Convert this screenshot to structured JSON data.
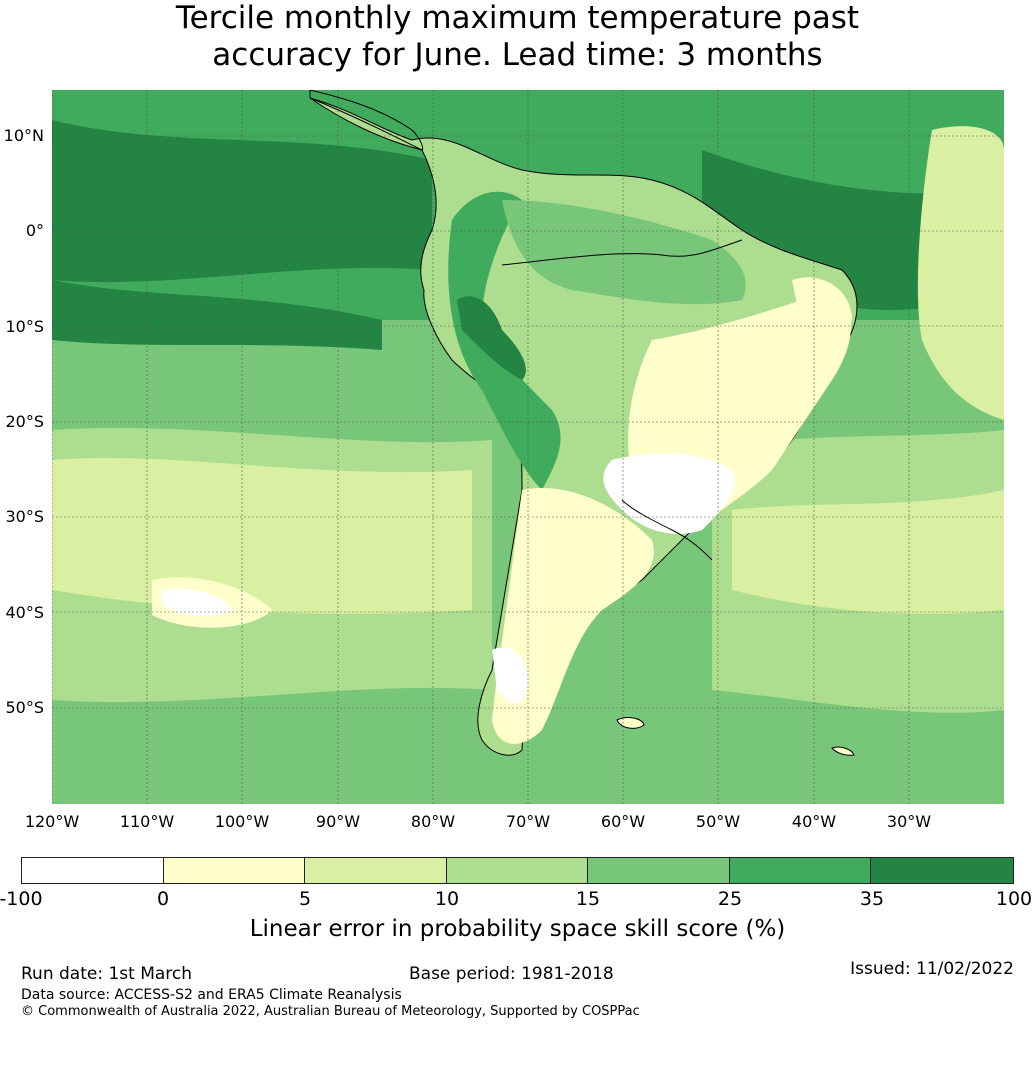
{
  "title_line1": "Tercile monthly maximum temperature past",
  "title_line2": "accuracy for June. Lead time: 3 months",
  "lat_labels": [
    "10°N",
    "0°",
    "10°S",
    "20°S",
    "30°S",
    "40°S",
    "50°S"
  ],
  "lon_labels": [
    "120°W",
    "110°W",
    "100°W",
    "90°W",
    "80°W",
    "70°W",
    "60°W",
    "50°W",
    "40°W",
    "30°W"
  ],
  "colorbar": {
    "colors": [
      "#ffffff",
      "#ffffcc",
      "#d9f0a3",
      "#addd8e",
      "#78c679",
      "#41ab5d",
      "#238443"
    ],
    "ticks": [
      "-100",
      "0",
      "5",
      "10",
      "15",
      "25",
      "35",
      "100"
    ],
    "label": "Linear error in probability space skill score (%)"
  },
  "footer": {
    "run_date": "Run date: 1st March",
    "base_period": "Base period: 1981-2018",
    "issued": "Issued: 11/02/2022",
    "data_source": "Data source: ACCESS-S2 and ERA5 Climate Reanalysis",
    "copyright": "© Commonwealth of Australia 2022, Australian Bureau of Meteorology, Supported by COSPPac"
  }
}
